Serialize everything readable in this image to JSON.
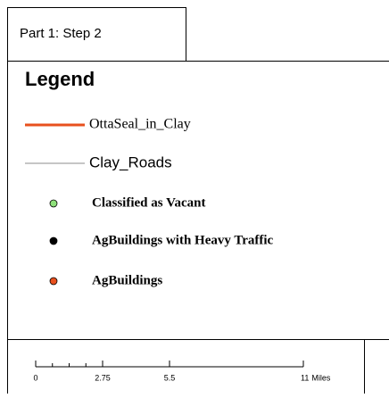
{
  "header": {
    "title": "Part 1: Step 2"
  },
  "legend": {
    "title": "Legend",
    "items": [
      {
        "label": "OttaSeal_in_Clay",
        "symbol": "line",
        "color": "#e8501e"
      },
      {
        "label": "Clay_Roads",
        "symbol": "line",
        "color": "#b4b4b4"
      },
      {
        "label": "Classified as Vacant",
        "symbol": "point",
        "color": "#8ee07a"
      },
      {
        "label": "AgBuildings with Heavy Traffic",
        "symbol": "point",
        "color": "#000000"
      },
      {
        "label": "AgBuildings",
        "symbol": "point",
        "color": "#e8501e"
      }
    ]
  },
  "scale_bar": {
    "ticks": [
      0,
      2.75,
      5.5,
      11
    ],
    "unit": "Miles"
  }
}
